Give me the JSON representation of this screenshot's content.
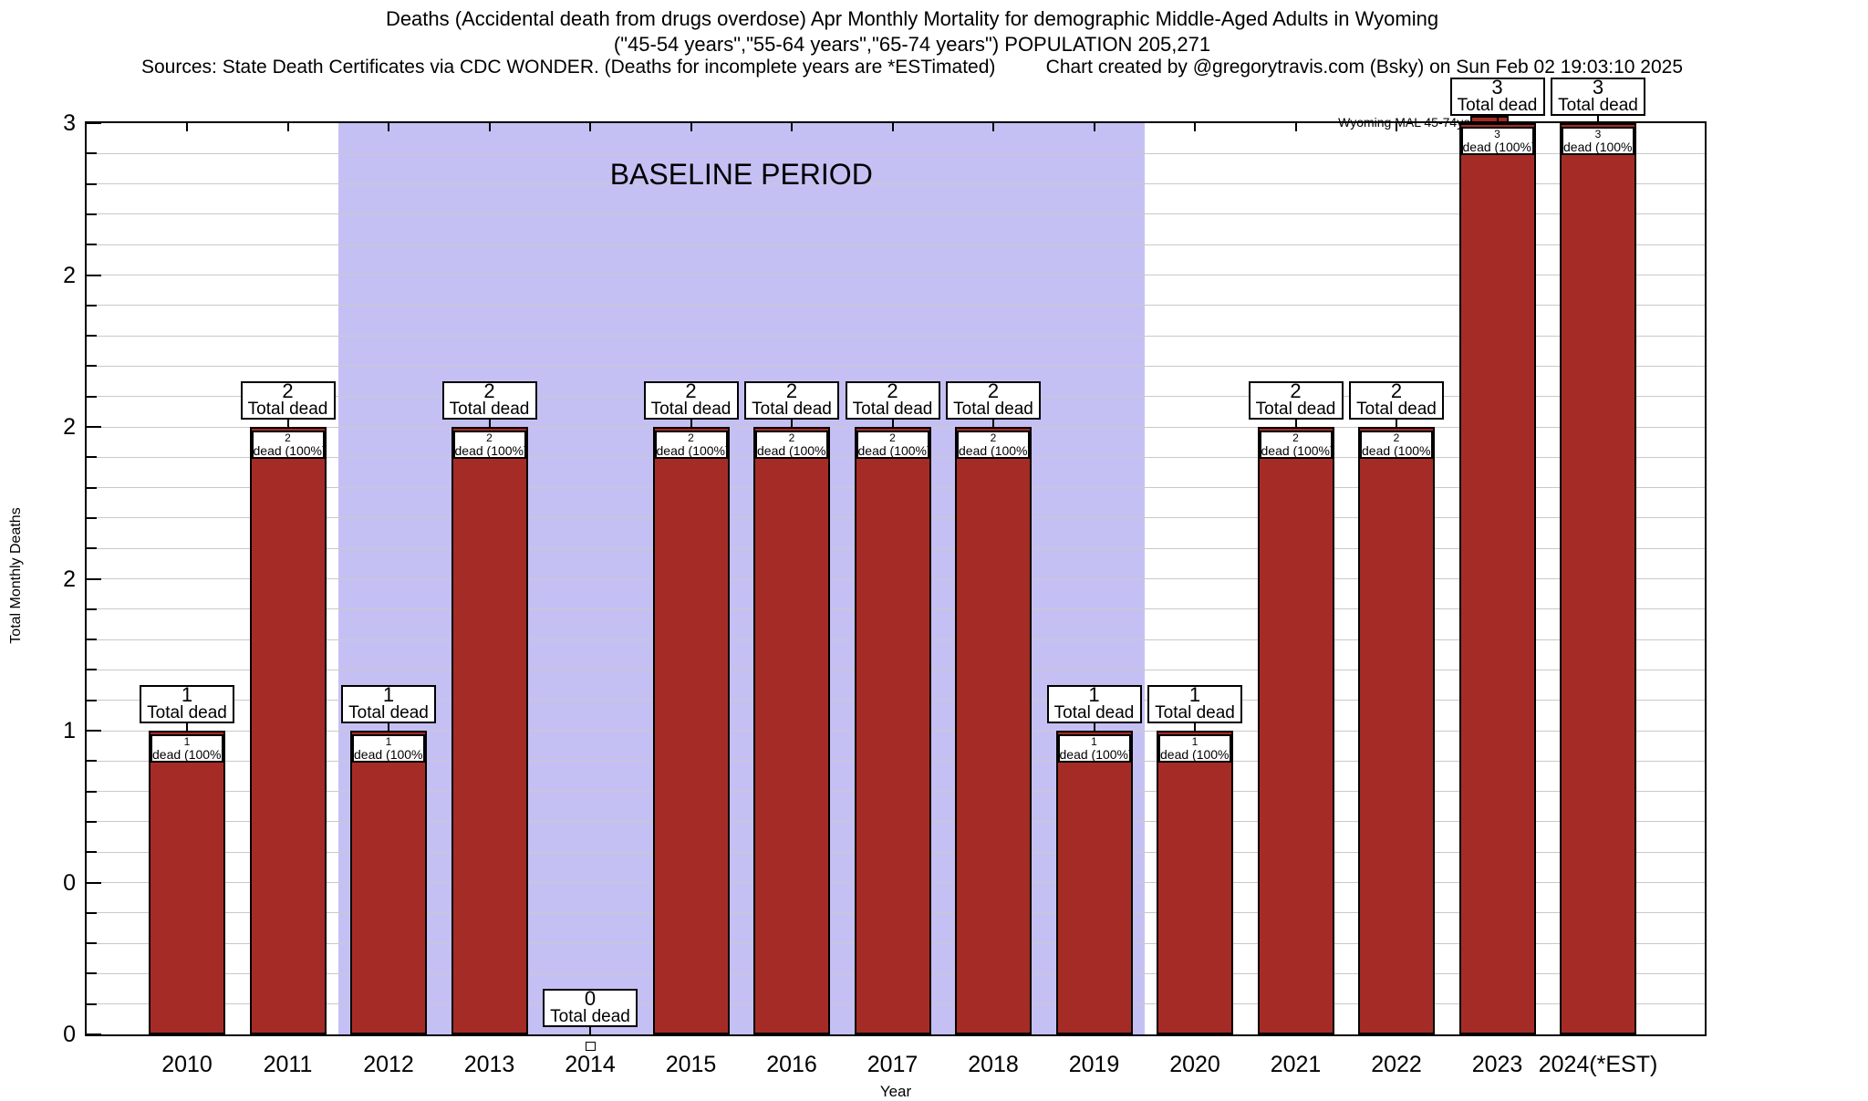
{
  "title": {
    "line1": "Deaths (Accidental death from drugs overdose) Apr Monthly Mortality for demographic Middle-Aged Adults in Wyoming",
    "line2": "(\"45-54 years\",\"55-64 years\",\"65-74 years\") POPULATION 205,271",
    "sources": "Sources: State Death Certificates via CDC WONDER. (Deaths for incomplete years are *ESTimated)",
    "credit": "Chart created by @gregorytravis.com (Bsky) on Sun Feb 02 19:03:10 2025"
  },
  "legend": {
    "label": "Wyoming MAL 45-74yo",
    "swatch_color": "#a52c26"
  },
  "baseline": {
    "label": "BASELINE PERIOD",
    "start_slot": 1.5,
    "end_slot": 9.5
  },
  "colors": {
    "bar": "#a52c26",
    "bar_border": "#000000",
    "grid": "#c9c9c9",
    "baseline_bg": "#c5c0f4"
  },
  "chart_data": {
    "type": "bar",
    "title": "Deaths (Accidental death from drugs overdose) Apr Monthly Mortality for demographic Middle-Aged Adults in Wyoming",
    "xlabel": "Year",
    "ylabel": "Total Monthly Deaths",
    "categories": [
      "2010",
      "2011",
      "2012",
      "2013",
      "2014",
      "2015",
      "2016",
      "2017",
      "2018",
      "2019",
      "2020",
      "2021",
      "2022",
      "2023",
      "2024(*EST)"
    ],
    "values": [
      1,
      2,
      1,
      2,
      0,
      2,
      2,
      2,
      2,
      1,
      1,
      2,
      2,
      3,
      3
    ],
    "series_name": "Wyoming MAL 45-74yo",
    "bar_total_label": "Total dead",
    "bar_inner_label": "dead (100%)",
    "ylim": [
      0,
      3
    ],
    "y_tick_step": 0.5,
    "y_minor_step": 0.1,
    "y_tick_labels_top_to_bottom": [
      "3",
      "2",
      "2",
      "2",
      "1",
      "0",
      "0"
    ],
    "grid": "on",
    "legend_position": "top-right",
    "baseline_period_years": [
      "2012",
      "2013",
      "2014",
      "2015",
      "2016",
      "2017",
      "2018",
      "2019"
    ]
  }
}
